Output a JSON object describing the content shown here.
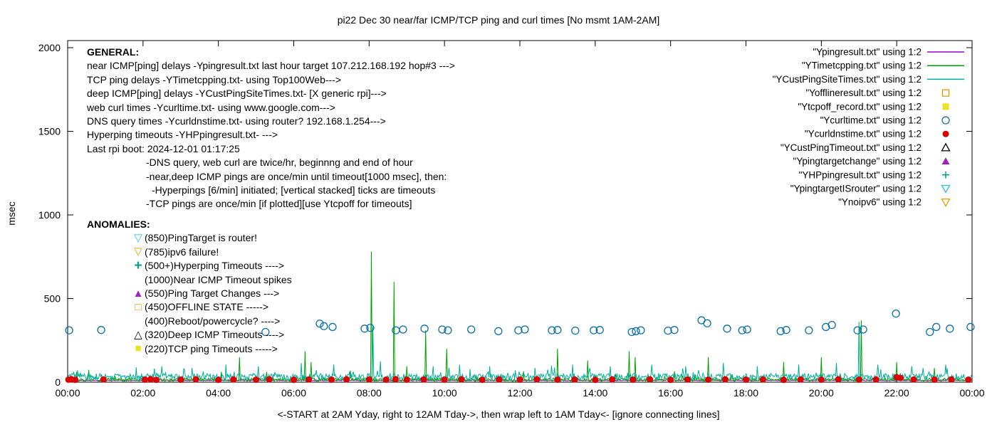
{
  "title": "pi22 Dec 30  near/far ICMP/TCP ping and curl times [No msmt 1AM-2AM]",
  "x_axis_label": "<-START at 2AM Yday, right to 12AM Tday->, then wrap left to 1AM Tday<- [ignore connecting lines]",
  "y_axis_label": "msec",
  "general": {
    "heading": "GENERAL:",
    "lines": [
      {
        "text": "near ICMP[ping] delays -Ypingresult.txt last hour target 107.212.168.192 hop#3 --->",
        "indent": 0
      },
      {
        "text": "TCP ping delays -YTimetcpping.txt- using Top100Web--->",
        "indent": 0
      },
      {
        "text": "deep ICMP[ping] delays -YCustPingSiteTimes.txt- [X generic rpi]--->",
        "indent": 0
      },
      {
        "text": "web curl times -Ycurltime.txt- using www.google.com--->",
        "indent": 0
      },
      {
        "text": "DNS query times -Ycurldnstime.txt- using router? 192.168.1.254--->",
        "indent": 0
      },
      {
        "text": "Hyperping timeouts -YHPpingresult.txt- --->",
        "indent": 0
      },
      {
        "text": "Last rpi boot: 2024-12-01 01:17:25",
        "indent": 0
      },
      {
        "text": "-DNS query, web curl are twice/hr, beginnng and end of hour",
        "indent": 83
      },
      {
        "text": "-near,deep ICMP pings are once/min until timeout[1000 msec], then:",
        "indent": 83
      },
      {
        "text": "-Hyperpings [6/min] initiated; [vertical stacked] ticks are timeouts",
        "indent": 91
      },
      {
        "text": "-TCP pings are once/min [if plotted][use Ytcpoff for timeouts]",
        "indent": 83
      }
    ]
  },
  "anomalies": {
    "heading": "ANOMALIES:",
    "items": [
      {
        "marker": "triangle-down-open",
        "color": "#2bc4e2",
        "text": "(850)PingTarget is router!"
      },
      {
        "marker": "triangle-down-open",
        "color": "#eda000",
        "text": "(785)ipv6 failure!"
      },
      {
        "marker": "plus",
        "color": "#00a080",
        "text": "(500+)Hyperping Timeouts ---->"
      },
      {
        "marker": null,
        "color": null,
        "text": "(1000)Near ICMP Timeout spikes"
      },
      {
        "marker": "triangle-filled",
        "color": "#a020c0",
        "text": "(550)Ping Target Changes --->"
      },
      {
        "marker": "square-open",
        "color": "#e69500",
        "text": "(450)OFFLINE STATE ----->"
      },
      {
        "marker": null,
        "color": null,
        "text": "(400)Reboot/powercycle? ---->"
      },
      {
        "marker": "triangle-open",
        "color": "#000000",
        "text": "(320)Deep ICMP Timeouts ---->"
      },
      {
        "marker": "square-filled",
        "color": "#f0e020",
        "text": "(220)TCP ping Timeouts ----->"
      }
    ]
  },
  "chart_data": {
    "type": "line",
    "title": "pi22 Dec 30  near/far ICMP/TCP ping and curl times [No msmt 1AM-2AM]",
    "xlabel": "<-START at 2AM Yday, right to 12AM Tday->, then wrap left to 1AM Tday<- [ignore connecting lines]",
    "ylabel": "msec",
    "xlim": [
      0,
      24
    ],
    "ylim": [
      0,
      2000
    ],
    "grid": false,
    "legend_position": "top-right",
    "y_ticks": [
      0,
      500,
      1000,
      1500,
      2000
    ],
    "x_ticks": [
      {
        "h": 0,
        "label": "00:00"
      },
      {
        "h": 2,
        "label": "02:00"
      },
      {
        "h": 4,
        "label": "04:00"
      },
      {
        "h": 6,
        "label": "06:00"
      },
      {
        "h": 8,
        "label": "08:00"
      },
      {
        "h": 10,
        "label": "10:00"
      },
      {
        "h": 12,
        "label": "12:00"
      },
      {
        "h": 14,
        "label": "14:00"
      },
      {
        "h": 16,
        "label": "16:00"
      },
      {
        "h": 18,
        "label": "18:00"
      },
      {
        "h": 20,
        "label": "20:00"
      },
      {
        "h": 22,
        "label": "22:00"
      },
      {
        "h": 24,
        "label": "00:00"
      }
    ],
    "series": [
      {
        "id": "ypingresult",
        "label": "\"Ypingresult.txt\" using 1:2",
        "color": "#9400d3",
        "style": "line",
        "noise": {
          "base": 8,
          "amp": 6,
          "seed": 7,
          "burst_p": 0,
          "burst_amp": 0
        },
        "spikes": []
      },
      {
        "id": "ytimetcpping",
        "label": "\"YTimetcpping.txt\" using 1:2",
        "color": "#00a000",
        "style": "line",
        "noise": {
          "base": 5,
          "amp": 20,
          "seed": 13,
          "burst_p": 0.02,
          "burst_amp": 60
        },
        "spikes": [
          [
            4.55,
            150
          ],
          [
            6.3,
            185
          ],
          [
            6.45,
            120
          ],
          [
            8.05,
            780
          ],
          [
            8.65,
            600
          ],
          [
            9.0,
            95
          ],
          [
            9.5,
            310
          ],
          [
            10.05,
            200
          ],
          [
            12.1,
            65
          ],
          [
            13.0,
            200
          ],
          [
            13.8,
            130
          ],
          [
            14.9,
            185
          ],
          [
            15.05,
            150
          ],
          [
            16.1,
            65
          ],
          [
            17.0,
            150
          ],
          [
            19.0,
            120
          ],
          [
            20.0,
            150
          ],
          [
            21.05,
            370
          ],
          [
            22.0,
            120
          ],
          [
            23.0,
            85
          ]
        ]
      },
      {
        "id": "ycustpingsitetimes",
        "label": "\"YCustPingSiteTimes.txt\" using 1:2",
        "color": "#00ad9b",
        "style": "line",
        "noise": {
          "base": 12,
          "amp": 40,
          "seed": 29,
          "burst_p": 0.05,
          "burst_amp": 55
        },
        "spikes": [
          [
            2.5,
            95
          ],
          [
            3.3,
            85
          ],
          [
            4.2,
            105
          ],
          [
            5.05,
            95
          ],
          [
            6.2,
            115
          ],
          [
            7.05,
            105
          ],
          [
            8.1,
            330
          ],
          [
            8.3,
            125
          ],
          [
            9.7,
            95
          ],
          [
            10.4,
            105
          ],
          [
            11.2,
            95
          ],
          [
            12.4,
            85
          ],
          [
            13.4,
            105
          ],
          [
            14.4,
            95
          ],
          [
            15.5,
            105
          ],
          [
            16.4,
            95
          ],
          [
            17.4,
            115
          ],
          [
            18.3,
            95
          ],
          [
            19.4,
            105
          ],
          [
            20.4,
            115
          ],
          [
            21.0,
            360
          ],
          [
            21.5,
            105
          ],
          [
            22.4,
            95
          ],
          [
            23.3,
            105
          ]
        ]
      },
      {
        "id": "yofflineresult",
        "label": "\"Yofflineresult.txt\" using 1:2",
        "color": "#e69500",
        "style": "square-open",
        "points": []
      },
      {
        "id": "ytcpoff_record",
        "label": "\"Ytcpoff_record.txt\" using 1:2",
        "color": "#f0e020",
        "style": "square-filled",
        "points": []
      },
      {
        "id": "ycurltime",
        "label": "\"Ycurltime.txt\" using 1:2",
        "color": "#0a70a8",
        "style": "circle-open",
        "points": [
          [
            0.04,
            310
          ],
          [
            0.89,
            312
          ],
          [
            5.25,
            300
          ],
          [
            6.69,
            350
          ],
          [
            6.8,
            335
          ],
          [
            7.03,
            330
          ],
          [
            7.88,
            320
          ],
          [
            8.03,
            325
          ],
          [
            8.71,
            310
          ],
          [
            8.9,
            315
          ],
          [
            9.47,
            320
          ],
          [
            9.94,
            315
          ],
          [
            10.09,
            310
          ],
          [
            10.71,
            315
          ],
          [
            11.43,
            305
          ],
          [
            11.96,
            310
          ],
          [
            12.13,
            315
          ],
          [
            12.85,
            310
          ],
          [
            13.0,
            312
          ],
          [
            13.47,
            308
          ],
          [
            13.96,
            310
          ],
          [
            14.12,
            312
          ],
          [
            14.97,
            300
          ],
          [
            15.08,
            305
          ],
          [
            15.21,
            310
          ],
          [
            15.93,
            308
          ],
          [
            16.1,
            312
          ],
          [
            16.82,
            370
          ],
          [
            16.97,
            352
          ],
          [
            17.5,
            320
          ],
          [
            17.9,
            310
          ],
          [
            18.03,
            315
          ],
          [
            18.92,
            305
          ],
          [
            19.07,
            312
          ],
          [
            19.67,
            310
          ],
          [
            20.12,
            330
          ],
          [
            20.28,
            342
          ],
          [
            20.96,
            310
          ],
          [
            21.11,
            315
          ],
          [
            21.98,
            410
          ],
          [
            22.88,
            300
          ],
          [
            23.05,
            330
          ],
          [
            23.41,
            320
          ],
          [
            23.96,
            330
          ]
        ]
      },
      {
        "id": "ycurldnstime",
        "label": "\"Ycurldnstime.txt\" using 1:2",
        "color": "#dd0000",
        "style": "circle-filled",
        "points": [
          [
            0.02,
            15
          ],
          [
            0.1,
            18
          ],
          [
            0.2,
            14
          ],
          [
            0.95,
            16
          ],
          [
            2.05,
            15
          ],
          [
            2.2,
            18
          ],
          [
            2.35,
            14
          ],
          [
            3.0,
            15
          ],
          [
            3.4,
            17
          ],
          [
            4.0,
            14
          ],
          [
            4.4,
            16
          ],
          [
            5.0,
            15
          ],
          [
            5.35,
            17
          ],
          [
            6.0,
            14
          ],
          [
            6.4,
            16
          ],
          [
            7.0,
            15
          ],
          [
            7.4,
            17
          ],
          [
            8.0,
            16
          ],
          [
            8.45,
            15
          ],
          [
            8.7,
            18
          ],
          [
            9.0,
            15
          ],
          [
            9.45,
            16
          ],
          [
            10.0,
            15
          ],
          [
            10.45,
            17
          ],
          [
            11.0,
            14
          ],
          [
            11.45,
            16
          ],
          [
            12.0,
            15
          ],
          [
            12.45,
            17
          ],
          [
            13.0,
            15
          ],
          [
            13.45,
            16
          ],
          [
            14.0,
            14
          ],
          [
            14.45,
            16
          ],
          [
            15.0,
            15
          ],
          [
            15.45,
            17
          ],
          [
            16.0,
            14
          ],
          [
            16.45,
            16
          ],
          [
            17.0,
            15
          ],
          [
            17.45,
            17
          ],
          [
            18.0,
            15
          ],
          [
            18.45,
            16
          ],
          [
            19.0,
            14
          ],
          [
            19.45,
            16
          ],
          [
            20.0,
            15
          ],
          [
            20.45,
            17
          ],
          [
            21.0,
            15
          ],
          [
            21.45,
            16
          ],
          [
            22.0,
            30
          ],
          [
            22.1,
            25
          ],
          [
            22.45,
            16
          ],
          [
            23.0,
            15
          ],
          [
            23.45,
            16
          ],
          [
            23.9,
            15
          ]
        ]
      },
      {
        "id": "ycustpingtimeout",
        "label": "\"YCustPingTimeout.txt\" using 1:2",
        "color": "#000000",
        "style": "triangle-open",
        "points": []
      },
      {
        "id": "ypingtargetchange",
        "label": "\"Ypingtargetchange\" using 1:2",
        "color": "#a020c0",
        "style": "triangle-filled",
        "points": []
      },
      {
        "id": "yhppingresult",
        "label": "\"YHPpingresult.txt\" using 1:2",
        "color": "#00a080",
        "style": "plus",
        "points": []
      },
      {
        "id": "ypingtargetisrouter",
        "label": "\"YpingtargetISrouter\" using 1:2",
        "color": "#2bc4e2",
        "style": "triangle-down-open",
        "points": []
      },
      {
        "id": "ynoipv6",
        "label": "\"Ynoipv6\" using 1:2",
        "color": "#eda000",
        "style": "triangle-down-open",
        "points": []
      }
    ]
  }
}
